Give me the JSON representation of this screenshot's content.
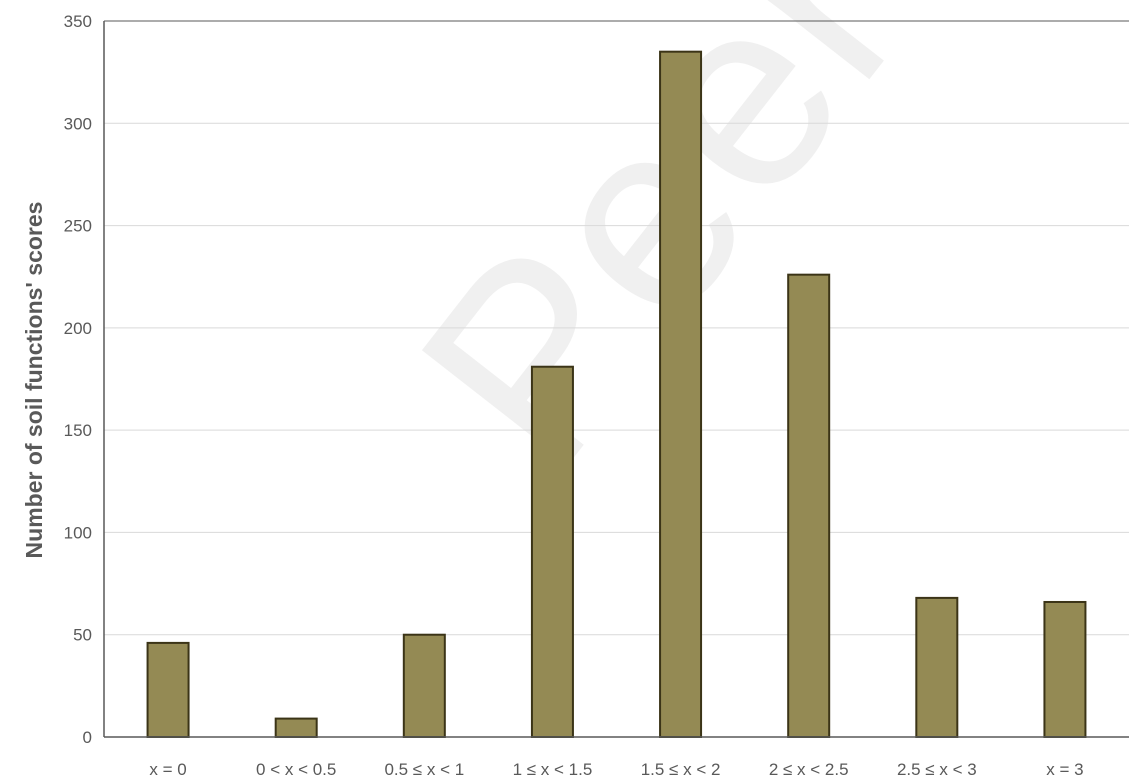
{
  "watermark": "Peer reviewed",
  "chart_data": {
    "type": "bar",
    "categories": [
      "x = 0",
      "0 < x < 0.5",
      "0.5 ≤ x < 1",
      "1 ≤ x < 1.5",
      "1.5 ≤ x < 2",
      "2 ≤ x < 2.5",
      "2.5 ≤ x < 3",
      "x = 3"
    ],
    "values": [
      46,
      9,
      50,
      181,
      335,
      226,
      68,
      66
    ],
    "title": "",
    "xlabel": "",
    "ylabel": "Number of soil functions' scores",
    "ylim": [
      0,
      350
    ],
    "yticks": [
      0,
      50,
      100,
      150,
      200,
      250,
      300,
      350
    ],
    "grid": true,
    "colors": {
      "bar_fill": "#948a54",
      "bar_stroke": "#3b3417",
      "grid": "#d9d9d9",
      "axis": "#595959",
      "tick_text": "#595959"
    }
  }
}
